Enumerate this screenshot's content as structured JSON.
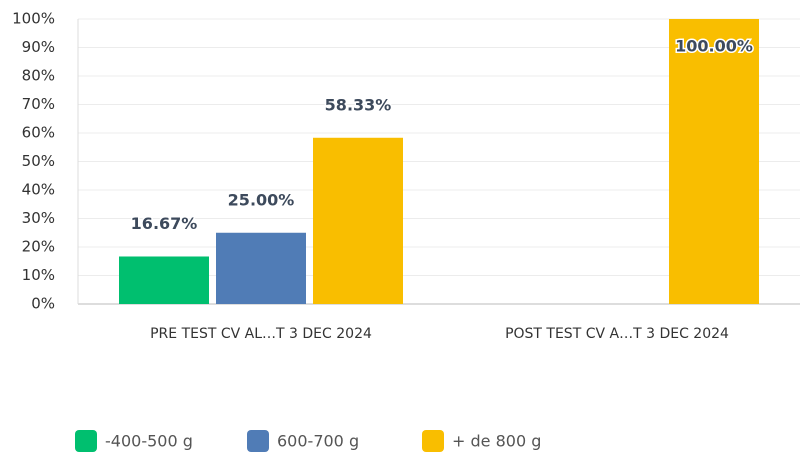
{
  "chart_data": {
    "type": "bar",
    "categories": [
      "PRE TEST CV AL…T 3 DEC 2024",
      "POST TEST CV A…T 3 DEC 2024"
    ],
    "series": [
      {
        "name": "-400-500 g",
        "color": "#00bf6f",
        "values": [
          16.67,
          null
        ],
        "value_labels": [
          "16.67%",
          null
        ]
      },
      {
        "name": "600-700 g",
        "color": "#507cb6",
        "values": [
          25.0,
          null
        ],
        "value_labels": [
          "25.00%",
          null
        ]
      },
      {
        "name": "+ de 800 g",
        "color": "#f9be00",
        "values": [
          58.33,
          100.0
        ],
        "value_labels": [
          "58.33%",
          "100.00%"
        ]
      }
    ],
    "ylim": [
      0,
      100
    ],
    "yticks": [
      {
        "value": 0,
        "label": "0%"
      },
      {
        "value": 10,
        "label": "10%"
      },
      {
        "value": 20,
        "label": "20%"
      },
      {
        "value": 30,
        "label": "30%"
      },
      {
        "value": 40,
        "label": "40%"
      },
      {
        "value": 50,
        "label": "50%"
      },
      {
        "value": 60,
        "label": "60%"
      },
      {
        "value": 70,
        "label": "70%"
      },
      {
        "value": 80,
        "label": "80%"
      },
      {
        "value": 90,
        "label": "90%"
      },
      {
        "value": 100,
        "label": "100%"
      }
    ],
    "grid": true,
    "legend": "bottom-left"
  }
}
